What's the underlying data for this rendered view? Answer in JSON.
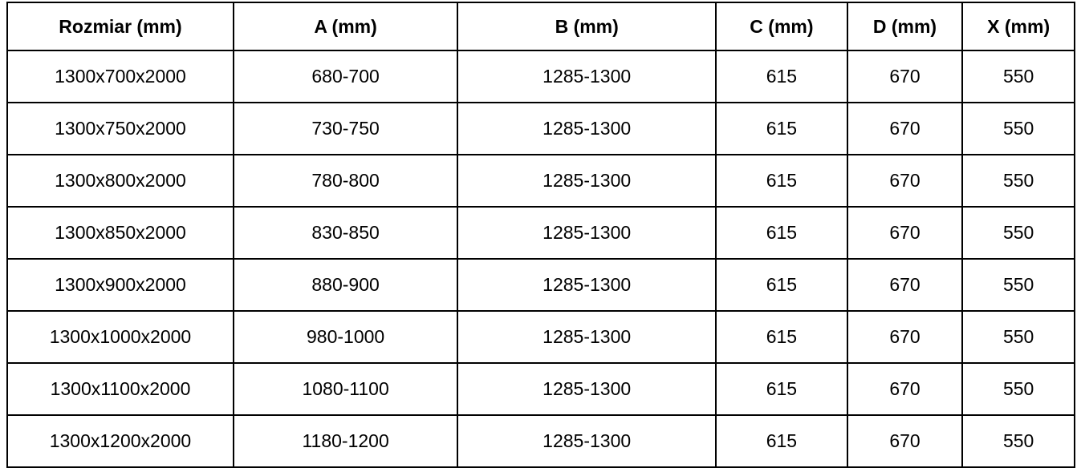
{
  "table": {
    "columns": [
      "Rozmiar (mm)",
      "A (mm)",
      "B (mm)",
      "C (mm)",
      "D (mm)",
      "X (mm)"
    ],
    "rows": [
      [
        "1300x700x2000",
        "680-700",
        "1285-1300",
        "615",
        "670",
        "550"
      ],
      [
        "1300x750x2000",
        "730-750",
        "1285-1300",
        "615",
        "670",
        "550"
      ],
      [
        "1300x800x2000",
        "780-800",
        "1285-1300",
        "615",
        "670",
        "550"
      ],
      [
        "1300x850x2000",
        "830-850",
        "1285-1300",
        "615",
        "670",
        "550"
      ],
      [
        "1300x900x2000",
        "880-900",
        "1285-1300",
        "615",
        "670",
        "550"
      ],
      [
        "1300x1000x2000",
        "980-1000",
        "1285-1300",
        "615",
        "670",
        "550"
      ],
      [
        "1300x1100x2000",
        "1080-1100",
        "1285-1300",
        "615",
        "670",
        "550"
      ],
      [
        "1300x1200x2000",
        "1180-1200",
        "1285-1300",
        "615",
        "670",
        "550"
      ]
    ],
    "colors": {
      "border": "#000000",
      "background": "#ffffff",
      "text": "#000000"
    }
  }
}
